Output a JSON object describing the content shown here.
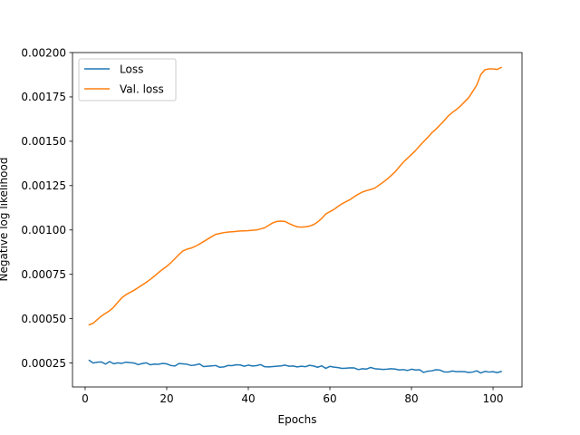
{
  "chart_data": {
    "type": "line",
    "title": "",
    "xlabel": "Epochs",
    "ylabel": "Negative log likelihood",
    "xlim": [
      -3.1,
      107.1
    ],
    "ylim": [
      0.000115,
      0.002
    ],
    "xticks": [
      0,
      20,
      40,
      60,
      80,
      100
    ],
    "yticks": [
      0.00025,
      0.0005,
      0.00075,
      0.001,
      0.00125,
      0.0015,
      0.00175,
      0.002
    ],
    "ytick_labels": [
      "0.00025",
      "0.00050",
      "0.00075",
      "0.00100",
      "0.00125",
      "0.00150",
      "0.00175",
      "0.00200"
    ],
    "grid": false,
    "legend": "upper-left",
    "series": [
      {
        "name": "Loss",
        "color": "#1f77b4",
        "x": [
          1,
          2,
          3,
          4,
          5,
          6,
          7,
          8,
          9,
          10,
          11,
          12,
          13,
          14,
          15,
          16,
          17,
          18,
          19,
          20,
          21,
          22,
          23,
          24,
          25,
          26,
          27,
          28,
          29,
          30,
          31,
          32,
          33,
          34,
          35,
          36,
          37,
          38,
          39,
          40,
          41,
          42,
          43,
          44,
          45,
          46,
          47,
          48,
          49,
          50,
          51,
          52,
          53,
          54,
          55,
          56,
          57,
          58,
          59,
          60,
          61,
          62,
          63,
          64,
          65,
          66,
          67,
          68,
          69,
          70,
          71,
          72,
          73,
          74,
          75,
          76,
          77,
          78,
          79,
          80,
          81,
          82,
          83,
          84,
          85,
          86,
          87,
          88,
          89,
          90,
          91,
          92,
          93,
          94,
          95,
          96,
          97,
          98,
          99,
          100,
          101,
          102
        ],
        "y": [
          0.000265,
          0.00025,
          0.000255,
          0.000256,
          0.000244,
          0.000258,
          0.000246,
          0.000251,
          0.000248,
          0.000255,
          0.000252,
          0.00025,
          0.000241,
          0.000247,
          0.000251,
          0.00024,
          0.000244,
          0.000243,
          0.000248,
          0.000245,
          0.000236,
          0.000233,
          0.000247,
          0.000245,
          0.000243,
          0.000236,
          0.000239,
          0.000245,
          0.00023,
          0.000232,
          0.000234,
          0.000236,
          0.000226,
          0.000228,
          0.000236,
          0.000235,
          0.00024,
          0.000239,
          0.000232,
          0.000238,
          0.000233,
          0.000235,
          0.000241,
          0.000229,
          0.000228,
          0.00023,
          0.000232,
          0.000234,
          0.000238,
          0.000232,
          0.000233,
          0.000228,
          0.000232,
          0.000229,
          0.000237,
          0.000233,
          0.000226,
          0.000234,
          0.00022,
          0.000231,
          0.000227,
          0.000224,
          0.00022,
          0.000221,
          0.000223,
          0.000222,
          0.000213,
          0.000218,
          0.000216,
          0.000225,
          0.000218,
          0.000216,
          0.000214,
          0.000215,
          0.000218,
          0.000216,
          0.000211,
          0.000213,
          0.000208,
          0.000215,
          0.000211,
          0.000212,
          0.000197,
          0.000204,
          0.000206,
          0.000212,
          0.00021,
          0.0002,
          0.000199,
          0.000205,
          0.000201,
          0.000202,
          0.000201,
          0.000197,
          0.000199,
          0.000206,
          0.000194,
          0.000203,
          0.000199,
          0.000201,
          0.000196,
          0.000202
        ]
      },
      {
        "name": "Val. loss",
        "color": "#ff7f0e",
        "x": [
          1,
          2,
          3,
          4,
          5,
          6,
          7,
          8,
          9,
          10,
          11,
          12,
          13,
          14,
          15,
          16,
          17,
          18,
          19,
          20,
          21,
          22,
          23,
          24,
          25,
          26,
          27,
          28,
          29,
          30,
          31,
          32,
          33,
          34,
          35,
          36,
          37,
          38,
          39,
          40,
          41,
          42,
          43,
          44,
          45,
          46,
          47,
          48,
          49,
          50,
          51,
          52,
          53,
          54,
          55,
          56,
          57,
          58,
          59,
          60,
          61,
          62,
          63,
          64,
          65,
          66,
          67,
          68,
          69,
          70,
          71,
          72,
          73,
          74,
          75,
          76,
          77,
          78,
          79,
          80,
          81,
          82,
          83,
          84,
          85,
          86,
          87,
          88,
          89,
          90,
          91,
          92,
          93,
          94,
          95,
          96,
          97,
          98,
          99,
          100,
          101,
          102
        ],
        "y": [
          0.000465,
          0.000475,
          0.000495,
          0.000515,
          0.00053,
          0.000545,
          0.000565,
          0.000592,
          0.000618,
          0.000635,
          0.000648,
          0.00066,
          0.000675,
          0.00069,
          0.000705,
          0.000722,
          0.00074,
          0.00076,
          0.000778,
          0.000795,
          0.000815,
          0.000838,
          0.000862,
          0.000882,
          0.000892,
          0.000898,
          0.000908,
          0.00092,
          0.000934,
          0.000948,
          0.000962,
          0.000975,
          0.00098,
          0.000985,
          0.000988,
          0.00099,
          0.000992,
          0.000994,
          0.000995,
          0.000996,
          0.000998,
          0.001,
          0.001006,
          0.001012,
          0.001026,
          0.00104,
          0.001048,
          0.00105,
          0.001048,
          0.001036,
          0.001026,
          0.001018,
          0.001016,
          0.001018,
          0.001022,
          0.00103,
          0.001045,
          0.001065,
          0.00109,
          0.001103,
          0.001116,
          0.001133,
          0.001148,
          0.00116,
          0.001172,
          0.001188,
          0.001202,
          0.001214,
          0.001222,
          0.001228,
          0.001236,
          0.001252,
          0.001268,
          0.001286,
          0.001306,
          0.001328,
          0.001355,
          0.001382,
          0.001404,
          0.001425,
          0.001448,
          0.001474,
          0.001498,
          0.001522,
          0.001548,
          0.001568,
          0.001592,
          0.001616,
          0.001642,
          0.001662,
          0.001679,
          0.001698,
          0.001722,
          0.001745,
          0.00178,
          0.001816,
          0.001876,
          0.001903,
          0.001908,
          0.001908,
          0.001905,
          0.001916
        ]
      }
    ]
  }
}
